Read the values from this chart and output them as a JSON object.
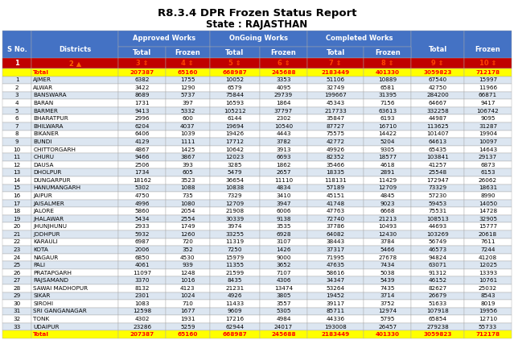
{
  "title": "R8.3.4 DPR Frozen Status Report",
  "subtitle": "State : RAJASTHAN",
  "rows": [
    [
      "",
      "Total",
      "207387",
      "65160",
      "668987",
      "245688",
      "2183449",
      "401330",
      "3059823",
      "712178"
    ],
    [
      "1",
      "AJMER",
      "6382",
      "1755",
      "10052",
      "3353",
      "51106",
      "10889",
      "67540",
      "15997"
    ],
    [
      "2",
      "ALWAR",
      "3422",
      "1290",
      "6579",
      "4095",
      "32749",
      "6581",
      "42750",
      "11966"
    ],
    [
      "3",
      "BANSWARA",
      "8689",
      "5737",
      "75844",
      "29739",
      "199667",
      "31395",
      "284200",
      "66871"
    ],
    [
      "4",
      "BARAN",
      "1731",
      "397",
      "16593",
      "1864",
      "45343",
      "7156",
      "64667",
      "9417"
    ],
    [
      "5",
      "BARMER",
      "9413",
      "5332",
      "105212",
      "37797",
      "217733",
      "63613",
      "332258",
      "106742"
    ],
    [
      "6",
      "BHARATPUR",
      "2996",
      "600",
      "6144",
      "2302",
      "35847",
      "6193",
      "44987",
      "9095"
    ],
    [
      "7",
      "BHILWARA",
      "6204",
      "4037",
      "19694",
      "10540",
      "87727",
      "16710",
      "113625",
      "31287"
    ],
    [
      "8",
      "BIKANER",
      "6406",
      "1039",
      "19426",
      "4443",
      "75575",
      "14422",
      "101407",
      "19904"
    ],
    [
      "9",
      "BUNDI",
      "4129",
      "1111",
      "17712",
      "3782",
      "42772",
      "5204",
      "64613",
      "10097"
    ],
    [
      "10",
      "CHITTORGARH",
      "4867",
      "1425",
      "10642",
      "3913",
      "49926",
      "9305",
      "65435",
      "14643"
    ],
    [
      "11",
      "CHURU",
      "9466",
      "3867",
      "12023",
      "6693",
      "82352",
      "18577",
      "103841",
      "29137"
    ],
    [
      "12",
      "DAUSA",
      "2506",
      "393",
      "3285",
      "1862",
      "35466",
      "4618",
      "41257",
      "6873"
    ],
    [
      "13",
      "DHOLPUR",
      "1734",
      "605",
      "5479",
      "2657",
      "18335",
      "2891",
      "25548",
      "6153"
    ],
    [
      "14",
      "DUNGARPUR",
      "18162",
      "3523",
      "36654",
      "11110",
      "118131",
      "11429",
      "172947",
      "26062"
    ],
    [
      "15",
      "HANUMANGARH",
      "5302",
      "1088",
      "10838",
      "4834",
      "57189",
      "12709",
      "73329",
      "18631"
    ],
    [
      "16",
      "JAIPUR",
      "4750",
      "735",
      "7329",
      "3410",
      "45151",
      "4845",
      "57230",
      "8990"
    ],
    [
      "17",
      "JAISALMER",
      "4996",
      "1080",
      "12709",
      "3947",
      "41748",
      "9023",
      "59453",
      "14050"
    ],
    [
      "18",
      "JALORE",
      "5860",
      "2054",
      "21908",
      "6006",
      "47763",
      "6668",
      "75531",
      "14728"
    ],
    [
      "19",
      "JHALAWAR",
      "5434",
      "2554",
      "30339",
      "9138",
      "72740",
      "21213",
      "108513",
      "32905"
    ],
    [
      "20",
      "JHUNJHUNU",
      "2933",
      "1749",
      "3974",
      "3535",
      "37786",
      "10493",
      "44693",
      "15777"
    ],
    [
      "21",
      "JODHPUR",
      "5932",
      "1260",
      "33255",
      "6928",
      "64082",
      "12430",
      "103269",
      "20618"
    ],
    [
      "22",
      "KARAULI",
      "6987",
      "720",
      "11319",
      "3107",
      "38443",
      "3784",
      "56749",
      "7611"
    ],
    [
      "23",
      "KOTA",
      "2006",
      "352",
      "7250",
      "1426",
      "37317",
      "5466",
      "46573",
      "7244"
    ],
    [
      "24",
      "NAGAUR",
      "6850",
      "4530",
      "15979",
      "9000",
      "71995",
      "27678",
      "94824",
      "41208"
    ],
    [
      "25",
      "PALI",
      "4061",
      "939",
      "11355",
      "3652",
      "47635",
      "7434",
      "63071",
      "12025"
    ],
    [
      "26",
      "PRATAPGARH",
      "11097",
      "1248",
      "21599",
      "7107",
      "58616",
      "5038",
      "91312",
      "13393"
    ],
    [
      "27",
      "RAJSAMAND",
      "3370",
      "1016",
      "8435",
      "4306",
      "34347",
      "5439",
      "46152",
      "10761"
    ],
    [
      "28",
      "SAWAI MADHOPUR",
      "8132",
      "4123",
      "21231",
      "13474",
      "53264",
      "7435",
      "82627",
      "25032"
    ],
    [
      "29",
      "SIKAR",
      "2301",
      "1024",
      "4926",
      "3805",
      "19452",
      "3714",
      "26679",
      "8543"
    ],
    [
      "30",
      "SIROHI",
      "1083",
      "710",
      "11433",
      "3557",
      "39117",
      "3752",
      "51633",
      "8019"
    ],
    [
      "31",
      "SRI GANGANAGAR",
      "12598",
      "1677",
      "9609",
      "5305",
      "85711",
      "12974",
      "107918",
      "19956"
    ],
    [
      "32",
      "TONK",
      "4302",
      "1931",
      "17216",
      "4984",
      "44336",
      "5795",
      "65854",
      "12710"
    ],
    [
      "33",
      "UDAIPUR",
      "23286",
      "5259",
      "62944",
      "24017",
      "193008",
      "26457",
      "279238",
      "55733"
    ],
    [
      "",
      "Total",
      "207387",
      "65160",
      "668987",
      "245688",
      "2183449",
      "401330",
      "3059823",
      "712178"
    ]
  ],
  "header_bg": "#4472c4",
  "header_fg": "#ffffff",
  "total_row_bg": "#ffff00",
  "total_row_fg": "#ff0000",
  "alt_row_bg": "#dce6f1",
  "normal_row_bg": "#ffffff",
  "num_row_bg": "#c00000",
  "num_row_fg": "#ffffff",
  "num2_color": "#ff6600",
  "title_color": "#000000"
}
